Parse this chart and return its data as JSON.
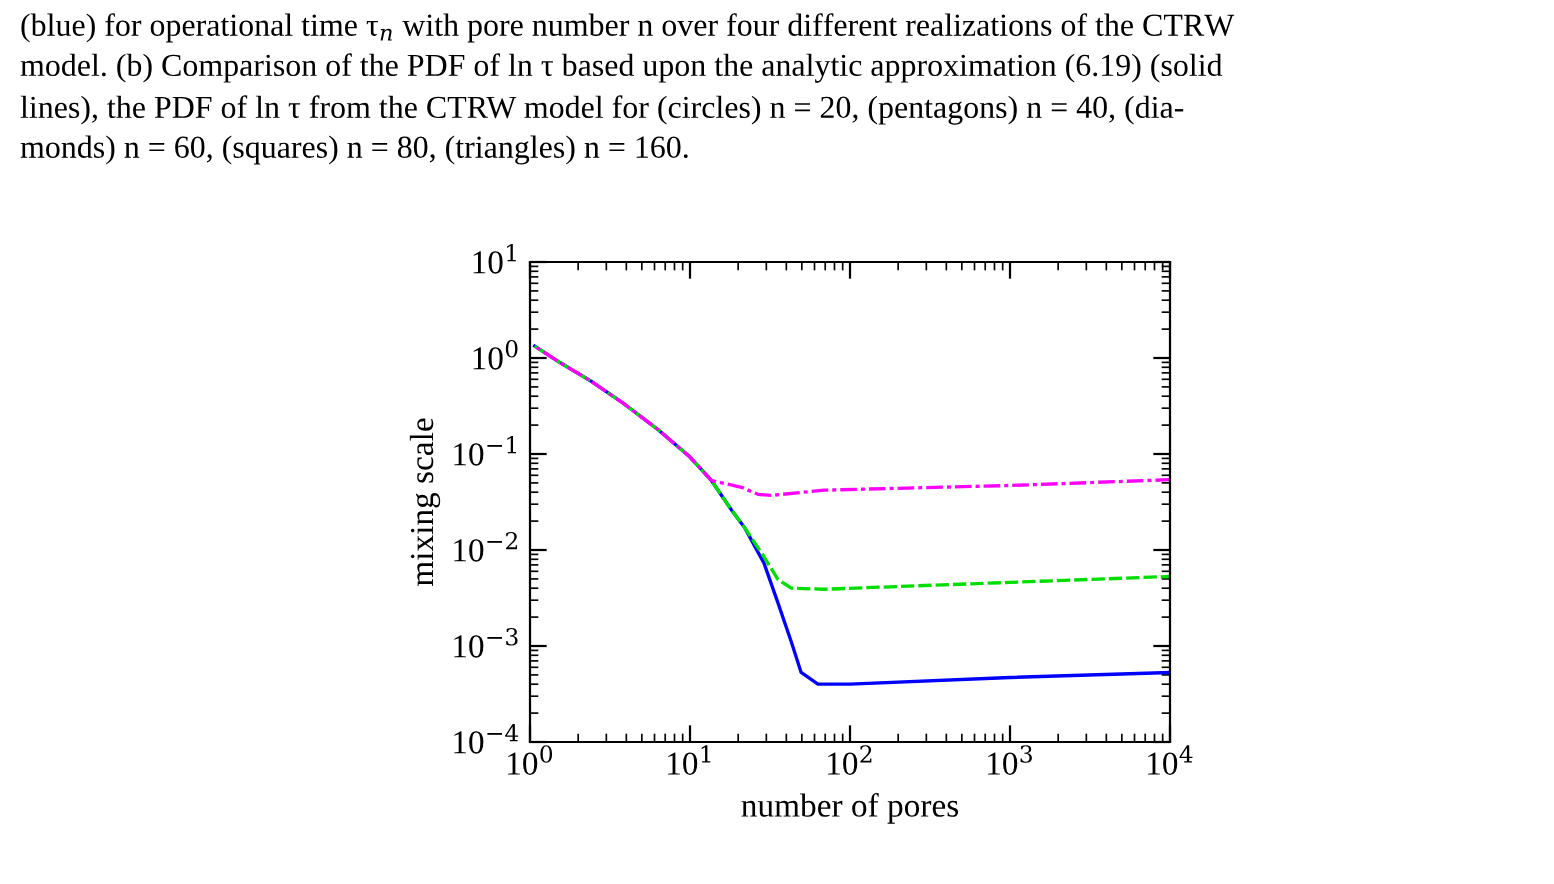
{
  "chart_data": {
    "type": "line",
    "xlabel": "number of pores",
    "ylabel": "mixing scale",
    "log": "xy",
    "xlim": [
      1,
      10000
    ],
    "ylim": [
      0.0001,
      10
    ],
    "xticks": [
      {
        "value": 1,
        "label": "10$^{0}$"
      },
      {
        "value": 10,
        "label": "10$^{1}$"
      },
      {
        "value": 100,
        "label": "10$^{2}$"
      },
      {
        "value": 1000,
        "label": "10$^{3}$"
      },
      {
        "value": 10000,
        "label": "10$^{4}$"
      }
    ],
    "yticks": [
      {
        "value": 0.0001,
        "label": "10$^{−4}$"
      },
      {
        "value": 0.001,
        "label": "10$^{−3}$"
      },
      {
        "value": 0.01,
        "label": "10$^{−2}$"
      },
      {
        "value": 0.1,
        "label": "10$^{−1}$"
      },
      {
        "value": 1,
        "label": "10$^{0}$"
      },
      {
        "value": 10,
        "label": "10$^{1}$"
      }
    ],
    "grid": false,
    "legend": false,
    "series": [
      {
        "color": "#0000ff",
        "line_style": "solid",
        "x": [
          1.07,
          1.5,
          2.42,
          3.9,
          6.3,
          10,
          13.6,
          18.2,
          22,
          29,
          35.5,
          43,
          49.5,
          63,
          100,
          1000,
          10000
        ],
        "values": [
          1.33,
          0.92,
          0.57,
          0.33,
          0.18,
          0.093,
          0.053,
          0.026,
          0.017,
          0.0073,
          0.0028,
          0.0011,
          0.00053,
          0.0004,
          0.0004,
          0.00047,
          0.00053
        ]
      },
      {
        "color": "#00dd00",
        "line_style": "dashed",
        "x": [
          1.07,
          1.5,
          2.42,
          3.9,
          6.3,
          10,
          13.6,
          18.2,
          22,
          29,
          35.5,
          43,
          69,
          1000,
          10000
        ],
        "values": [
          1.33,
          0.92,
          0.57,
          0.33,
          0.18,
          0.093,
          0.053,
          0.026,
          0.017,
          0.0085,
          0.0049,
          0.004,
          0.0039,
          0.0046,
          0.0053
        ]
      },
      {
        "color": "#ff00ff",
        "line_style": "dashdot",
        "x": [
          1.07,
          1.5,
          2.42,
          3.9,
          6.3,
          10,
          13.6,
          21,
          26.6,
          32,
          69,
          1000,
          10000
        ],
        "values": [
          1.33,
          0.92,
          0.57,
          0.33,
          0.18,
          0.093,
          0.053,
          0.045,
          0.038,
          0.037,
          0.042,
          0.047,
          0.054
        ]
      }
    ],
    "annotations": [
      "(blue) for operational time τ$_{n}$ with pore number n over four different realizations of the CTRW",
      "model. (b) Comparison of the PDF of ln τ based upon the analytic approximation (6.19) (solid",
      "lines), the PDF of ln τ from the CTRW model for (circles) n = 20, (pentagons) n = 40, (dia-",
      "monds) n = 60, (squares) n = 80, (triangles) n = 160."
    ]
  }
}
